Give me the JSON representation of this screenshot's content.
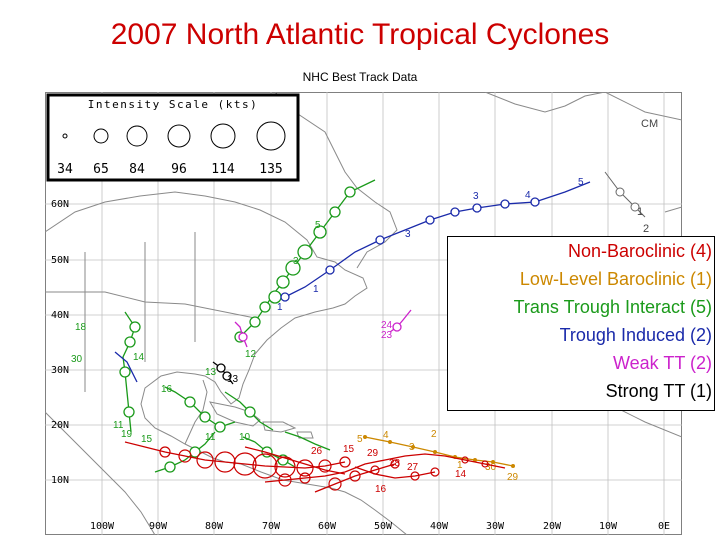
{
  "title": "2007 North Atlantic Tropical Cyclones",
  "subtitle": "NHC Best Track Data",
  "intensity_scale": {
    "title": "Intensity Scale (kts)",
    "values": [
      "34",
      "65",
      "84",
      "96",
      "114",
      "135"
    ]
  },
  "lat_labels": [
    "60N",
    "50N",
    "40N",
    "30N",
    "20N",
    "10N"
  ],
  "lon_labels": [
    "100W",
    "90W",
    "80W",
    "70W",
    "60W",
    "50W",
    "40W",
    "30W",
    "20W",
    "10W",
    "0E"
  ],
  "legend": [
    {
      "label": "Non-Baroclinic (4)",
      "color": "#cc0000"
    },
    {
      "label": "Low-Level Baroclinic (1)",
      "color": "#cc8800"
    },
    {
      "label": "Trans Trough Interact (5)",
      "color": "#1a9a1a"
    },
    {
      "label": "Trough Induced (2)",
      "color": "#1a2aaa"
    },
    {
      "label": "Weak TT (2)",
      "color": "#cc22cc"
    },
    {
      "label": "Strong TT (1)",
      "color": "#000000"
    }
  ],
  "colors": {
    "title": "#cc0000",
    "map_lines": "#9a9a9a",
    "grid": "#c0c0c0"
  },
  "track_labels": {
    "red": [
      "26",
      "15",
      "29",
      "28",
      "27",
      "14",
      "16"
    ],
    "orange": [
      "5",
      "4",
      "3",
      "2",
      "1",
      "30",
      "29"
    ],
    "blue": [
      "3",
      "4",
      "5",
      "3",
      "1",
      "1"
    ],
    "green": [
      "5",
      "3",
      "10",
      "19",
      "15",
      "11",
      "14",
      "16",
      "30",
      "13",
      "18",
      "12",
      "11"
    ],
    "magenta": [
      "24",
      "23"
    ],
    "black": [
      "13"
    ],
    "gray": [
      "1",
      "2",
      "CM"
    ]
  }
}
